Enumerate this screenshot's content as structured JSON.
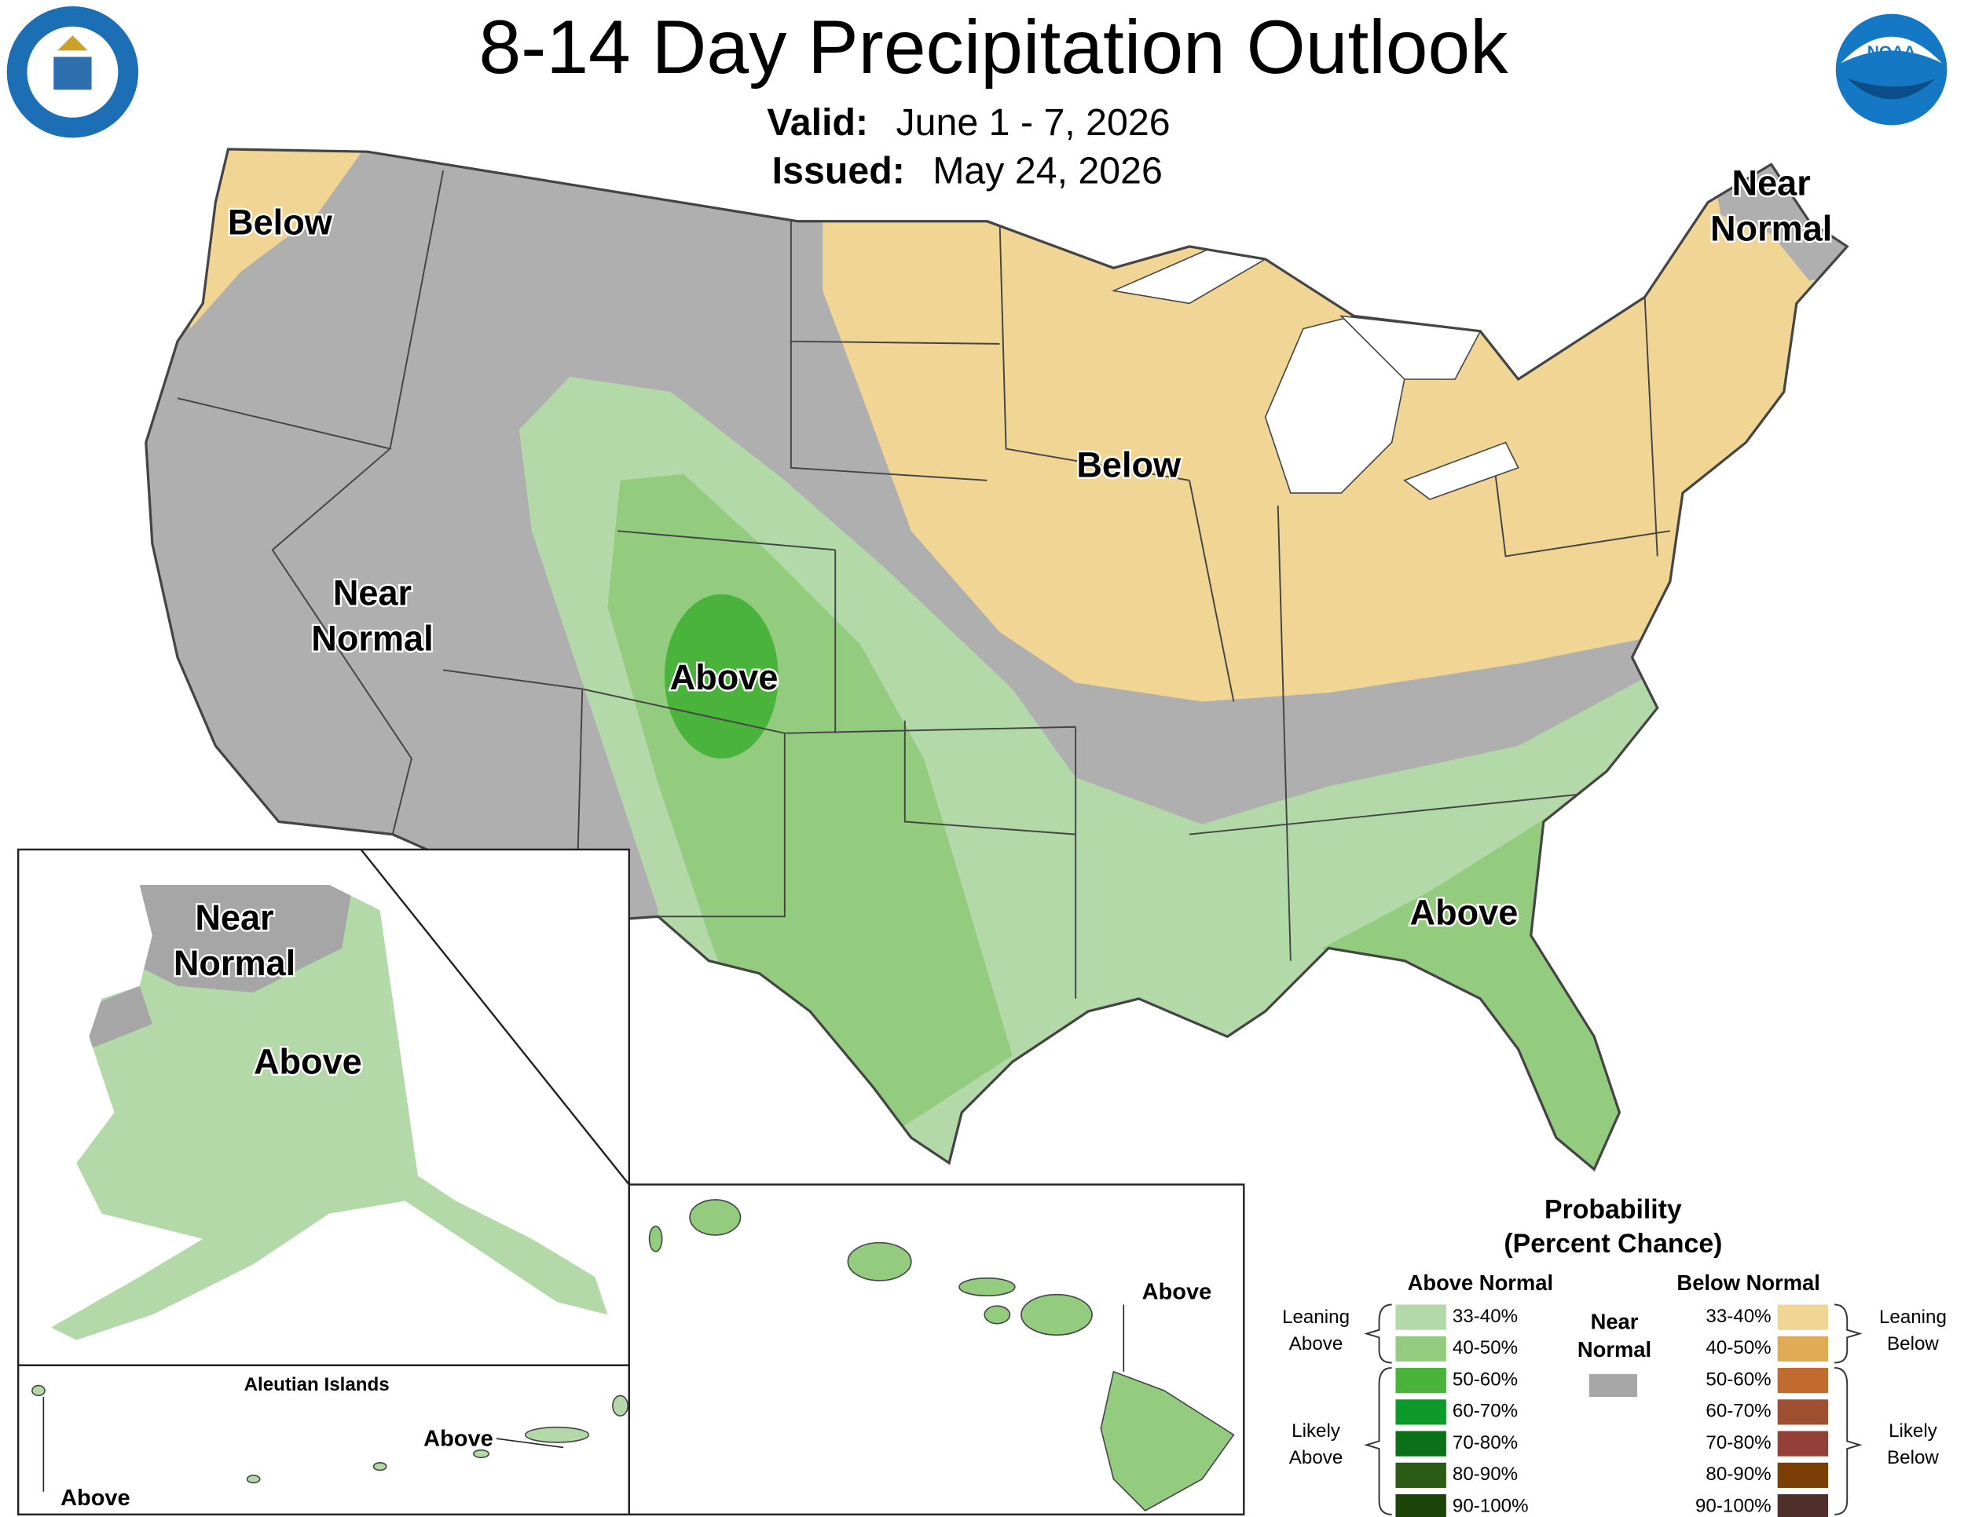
{
  "header": {
    "title": "8-14 Day Precipitation Outlook",
    "valid_label": "Valid:",
    "valid": "June 1 - 7, 2026",
    "issued_label": "Issued:",
    "issued": "May 24, 2026"
  },
  "map_labels": [
    {
      "lines": [
        "Below"
      ]
    },
    {
      "lines": [
        "Near",
        "Normal"
      ]
    },
    {
      "lines": [
        "Below"
      ]
    },
    {
      "lines": [
        "Near",
        "Normal"
      ]
    },
    {
      "lines": [
        "Above"
      ]
    },
    {
      "lines": [
        "Above"
      ]
    }
  ],
  "alaska": {
    "labels": [
      {
        "lines": [
          "Near",
          "Normal"
        ]
      },
      {
        "lines": [
          "Above"
        ]
      }
    ]
  },
  "aleutians": {
    "title": "Aleutian Islands",
    "labels": [
      "Above",
      "Above"
    ]
  },
  "hawaii": {
    "label": "Above"
  },
  "legend": {
    "title": "Probability",
    "subtitle": "(Percent Chance)",
    "above_title": "Above Normal",
    "below_title": "Below Normal",
    "near_normal": {
      "lines": [
        "Near",
        "Normal"
      ],
      "color": "#a6a6a6"
    },
    "leaning_above": [
      "Leaning",
      "Above"
    ],
    "likely_above": [
      "Likely",
      "Above"
    ],
    "leaning_below": [
      "Leaning",
      "Below"
    ],
    "likely_below": [
      "Likely",
      "Below"
    ],
    "above": [
      {
        "label": "33-40%",
        "color": "#b3d9a9"
      },
      {
        "label": "40-50%",
        "color": "#93cc7f"
      },
      {
        "label": "50-60%",
        "color": "#4ab33b"
      },
      {
        "label": "60-70%",
        "color": "#0e9a2a"
      },
      {
        "label": "70-80%",
        "color": "#0b7117"
      },
      {
        "label": "80-90%",
        "color": "#2c5b16"
      },
      {
        "label": "90-100%",
        "color": "#1d4408"
      }
    ],
    "below": [
      {
        "label": "33-40%",
        "color": "#f0d595"
      },
      {
        "label": "40-50%",
        "color": "#dfab55"
      },
      {
        "label": "50-60%",
        "color": "#c26b31"
      },
      {
        "label": "60-70%",
        "color": "#9e5030"
      },
      {
        "label": "70-80%",
        "color": "#944039"
      },
      {
        "label": "80-90%",
        "color": "#7b3f05"
      },
      {
        "label": "90-100%",
        "color": "#4f2f2a"
      }
    ]
  }
}
